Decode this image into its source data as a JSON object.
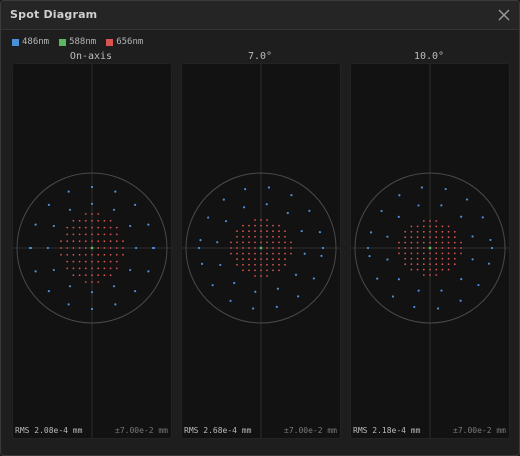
{
  "window": {
    "title": "Spot Diagram",
    "close_icon": "close-icon"
  },
  "legend": [
    {
      "label": "486nm",
      "color": "#4a8fd8"
    },
    {
      "label": "588nm",
      "color": "#5cb85c"
    },
    {
      "label": "656nm",
      "color": "#d9534f"
    }
  ],
  "colors": {
    "blue": "#4a8fd8",
    "green": "#5cb85c",
    "red": "#d9534f",
    "grid": "#3a3a3a",
    "circle": "#4a4a4a"
  },
  "panels": [
    {
      "title": "On-axis",
      "rms": "RMS 2.08e-4 mm",
      "scale": "±7.00e-2 mm"
    },
    {
      "title": "7.0°",
      "rms": "RMS 2.68e-4 mm",
      "scale": "±7.00e-2 mm"
    },
    {
      "title": "10.0°",
      "rms": "RMS 2.18e-4 mm",
      "scale": "±7.00e-2 mm"
    }
  ]
}
